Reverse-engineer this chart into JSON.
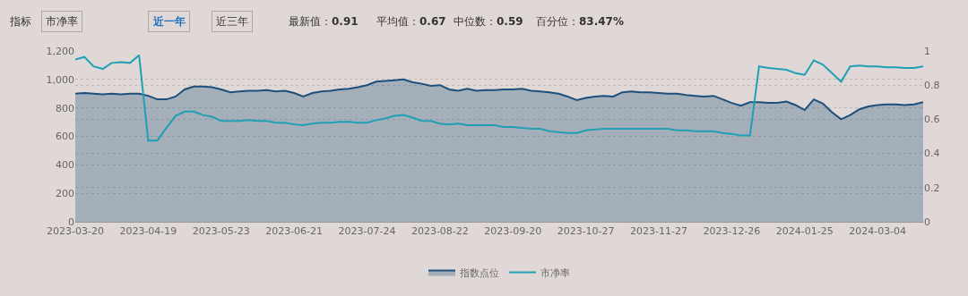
{
  "chart_data": {
    "type": "line",
    "categories": [
      "2023-03-20",
      null,
      null,
      null,
      null,
      null,
      null,
      null,
      "2023-04-19",
      null,
      null,
      null,
      null,
      null,
      null,
      null,
      "2023-05-23",
      null,
      null,
      null,
      null,
      null,
      null,
      null,
      "2023-06-21",
      null,
      null,
      null,
      null,
      null,
      null,
      null,
      "2023-07-24",
      null,
      null,
      null,
      null,
      null,
      null,
      null,
      "2023-08-22",
      null,
      null,
      null,
      null,
      null,
      null,
      null,
      "2023-09-20",
      null,
      null,
      null,
      null,
      null,
      null,
      null,
      "2023-10-27",
      null,
      null,
      null,
      null,
      null,
      null,
      null,
      "2023-11-27",
      null,
      null,
      null,
      null,
      null,
      null,
      null,
      "2023-12-26",
      null,
      null,
      null,
      null,
      null,
      null,
      null,
      "2024-01-25",
      null,
      null,
      null,
      null,
      null,
      null,
      null,
      "2024-03-04",
      null,
      null,
      null,
      null,
      null
    ],
    "series": [
      {
        "name": "指数点位",
        "type": "area",
        "color": "#1d4f7c",
        "values": [
          900,
          905,
          900,
          895,
          900,
          895,
          900,
          900,
          885,
          860,
          860,
          880,
          930,
          950,
          950,
          945,
          930,
          910,
          915,
          920,
          920,
          925,
          915,
          920,
          905,
          880,
          905,
          915,
          920,
          930,
          935,
          945,
          960,
          985,
          990,
          995,
          1000,
          980,
          970,
          955,
          960,
          930,
          920,
          935,
          920,
          925,
          925,
          930,
          930,
          935,
          920,
          915,
          910,
          900,
          880,
          855,
          870,
          880,
          885,
          880,
          910,
          915,
          910,
          910,
          905,
          900,
          900,
          890,
          885,
          880,
          885,
          860,
          835,
          815,
          840,
          840,
          835,
          835,
          845,
          820,
          785,
          860,
          830,
          770,
          720,
          750,
          790,
          810,
          820,
          825,
          825,
          820,
          825,
          840
        ]
      },
      {
        "name": "市净率",
        "axis": "y2",
        "color": "#1fa0b4",
        "values": [
          0.95,
          0.965,
          0.91,
          0.895,
          0.93,
          0.935,
          0.93,
          0.975,
          0.475,
          0.475,
          0.55,
          0.62,
          0.645,
          0.645,
          0.625,
          0.615,
          0.59,
          0.59,
          0.59,
          0.595,
          0.59,
          0.59,
          0.58,
          0.58,
          0.57,
          0.565,
          0.575,
          0.58,
          0.58,
          0.585,
          0.585,
          0.58,
          0.58,
          0.595,
          0.605,
          0.62,
          0.625,
          0.61,
          0.59,
          0.59,
          0.575,
          0.57,
          0.575,
          0.565,
          0.565,
          0.565,
          0.565,
          0.555,
          0.555,
          0.55,
          0.545,
          0.545,
          0.53,
          0.525,
          0.52,
          0.52,
          0.535,
          0.54,
          0.545,
          0.545,
          0.545,
          0.545,
          0.545,
          0.545,
          0.545,
          0.545,
          0.535,
          0.535,
          0.53,
          0.53,
          0.53,
          0.52,
          0.515,
          0.505,
          0.505,
          0.91,
          0.9,
          0.895,
          0.89,
          0.87,
          0.86,
          0.945,
          0.92,
          0.87,
          0.82,
          0.91,
          0.915,
          0.91,
          0.91,
          0.905,
          0.905,
          0.9,
          0.9,
          0.91
        ]
      }
    ],
    "ylim": [
      0,
      1200
    ],
    "yticks": [
      {
        "value": 0,
        "label": "0"
      },
      {
        "value": 200,
        "label": "200"
      },
      {
        "value": 400,
        "label": "400"
      },
      {
        "value": 600,
        "label": "600"
      },
      {
        "value": 800,
        "label": "800"
      },
      {
        "value": 1000,
        "label": "1,000"
      },
      {
        "value": 1200,
        "label": "1,200"
      }
    ],
    "y2lim": [
      0,
      1
    ],
    "y2ticks": [
      0,
      0.2,
      0.4,
      0.6,
      0.8,
      1
    ],
    "grid": "y",
    "legend": "bottom",
    "marker": "none",
    "line_style": "solid",
    "annotations": [
      "指标",
      "市净率",
      "近一年",
      "近三年",
      "最新值：0.91",
      "平均值：0.67",
      "中位数：0.59",
      "百分位：83.47%"
    ]
  }
}
